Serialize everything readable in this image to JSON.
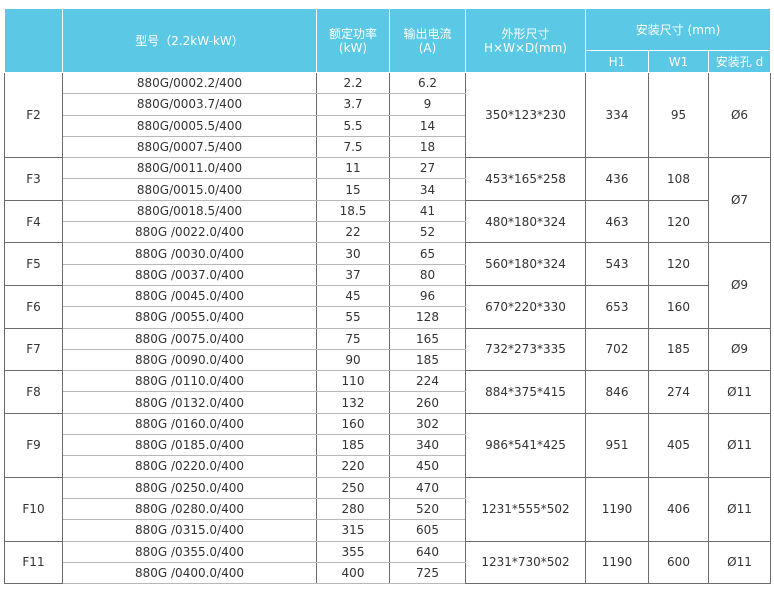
{
  "header": {
    "model": "型号（2.2kW-kW）",
    "power_line1": "额定功率",
    "power_line2": "(kW)",
    "current_line1": "输出电流",
    "current_line2": "(A)",
    "size_line1": "外形尺寸",
    "size_line2": "H×W×D(mm)",
    "install": "安装尺寸 (mm)",
    "h1": "H1",
    "w1": "W1",
    "hole": "安装孔 d"
  },
  "frames": [
    {
      "frame": "F2",
      "dims": "350*123*230",
      "h1": "334",
      "w1": "95",
      "rows": [
        {
          "model": "880G/0002.2/400",
          "power": "2.2",
          "current": "6.2"
        },
        {
          "model": "880G/0003.7/400",
          "power": "3.7",
          "current": "9"
        },
        {
          "model": "880G/0005.5/400",
          "power": "5.5",
          "current": "14"
        },
        {
          "model": "880G/0007.5/400",
          "power": "7.5",
          "current": "18"
        }
      ]
    },
    {
      "frame": "F3",
      "dims": "453*165*258",
      "h1": "436",
      "w1": "108",
      "rows": [
        {
          "model": "880G/0011.0/400",
          "power": "11",
          "current": "27"
        },
        {
          "model": "880G/0015.0/400",
          "power": "15",
          "current": "34"
        }
      ]
    },
    {
      "frame": "F4",
      "dims": "480*180*324",
      "h1": "463",
      "w1": "120",
      "rows": [
        {
          "model": "880G/0018.5/400",
          "power": "18.5",
          "current": "41"
        },
        {
          "model": "880G /0022.0/400",
          "power": "22",
          "current": "52"
        }
      ]
    },
    {
      "frame": "F5",
      "dims": "560*180*324",
      "h1": "543",
      "w1": "120",
      "rows": [
        {
          "model": "880G /0030.0/400",
          "power": "30",
          "current": "65"
        },
        {
          "model": "880G /0037.0/400",
          "power": "37",
          "current": "80"
        }
      ]
    },
    {
      "frame": "F6",
      "dims": "670*220*330",
      "h1": "653",
      "w1": "160",
      "rows": [
        {
          "model": "880G /0045.0/400",
          "power": "45",
          "current": "96"
        },
        {
          "model": "880G /0055.0/400",
          "power": "55",
          "current": "128"
        }
      ]
    },
    {
      "frame": "F7",
      "dims": "732*273*335",
      "h1": "702",
      "w1": "185",
      "rows": [
        {
          "model": "880G /0075.0/400",
          "power": "75",
          "current": "165"
        },
        {
          "model": "880G /0090.0/400",
          "power": "90",
          "current": "185"
        }
      ]
    },
    {
      "frame": "F8",
      "dims": "884*375*415",
      "h1": "846",
      "w1": "274",
      "rows": [
        {
          "model": "880G /0110.0/400",
          "power": "110",
          "current": "224"
        },
        {
          "model": "880G /0132.0/400",
          "power": "132",
          "current": "260"
        }
      ]
    },
    {
      "frame": "F9",
      "dims": "986*541*425",
      "h1": "951",
      "w1": "405",
      "rows": [
        {
          "model": "880G /0160.0/400",
          "power": "160",
          "current": "302"
        },
        {
          "model": "880G /0185.0/400",
          "power": "185",
          "current": "340"
        },
        {
          "model": "880G /0220.0/400",
          "power": "220",
          "current": "450"
        }
      ]
    },
    {
      "frame": "F10",
      "dims": "1231*555*502",
      "h1": "1190",
      "w1": "406",
      "rows": [
        {
          "model": "880G /0250.0/400",
          "power": "250",
          "current": "470"
        },
        {
          "model": "880G /0280.0/400",
          "power": "280",
          "current": "520"
        },
        {
          "model": "880G /0315.0/400",
          "power": "315",
          "current": "605"
        }
      ]
    },
    {
      "frame": "F11",
      "dims": "1231*730*502",
      "h1": "1190",
      "w1": "600",
      "rows": [
        {
          "model": "880G /0355.0/400",
          "power": "355",
          "current": "640"
        },
        {
          "model": "880G /0400.0/400",
          "power": "400",
          "current": "725"
        }
      ]
    }
  ],
  "holes": [
    {
      "value": "Ø6",
      "frame_count": 1
    },
    {
      "value": "Ø7",
      "frame_count": 2
    },
    {
      "value": "Ø9",
      "frame_count": 2
    },
    {
      "value": "Ø9",
      "frame_count": 1
    },
    {
      "value": "Ø11",
      "frame_count": 1
    },
    {
      "value": "Ø11",
      "frame_count": 1
    },
    {
      "value": "Ø11",
      "frame_count": 1
    },
    {
      "value": "Ø11",
      "frame_count": 1
    }
  ]
}
